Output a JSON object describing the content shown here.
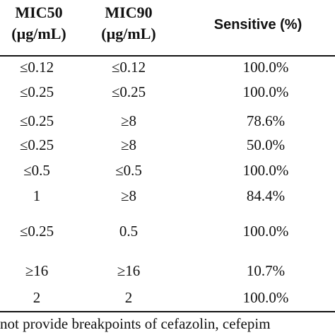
{
  "table": {
    "headers": {
      "mic50": [
        "MIC50",
        "(µg/mL)"
      ],
      "mic90": [
        "MIC90",
        "(µg/mL)"
      ],
      "sensitive": "Sensitive (%)"
    },
    "rows": [
      {
        "mic50": "≤0.12",
        "mic90": "≤0.12",
        "sensitive": "100.0%"
      },
      {
        "mic50": "≤0.25",
        "mic90": "≤0.25",
        "sensitive": "100.0%"
      },
      {
        "mic50": "≤0.25",
        "mic90": "≥8",
        "sensitive": "78.6%"
      },
      {
        "mic50": "≤0.25",
        "mic90": "≥8",
        "sensitive": "50.0%"
      },
      {
        "mic50": "≤0.5",
        "mic90": "≤0.5",
        "sensitive": "100.0%"
      },
      {
        "mic50": "1",
        "mic90": "≥8",
        "sensitive": "84.4%"
      },
      {
        "mic50": "≤0.25",
        "mic90": "0.5",
        "sensitive": "100.0%"
      },
      {
        "mic50": "≥16",
        "mic90": "≥16",
        "sensitive": "10.7%"
      },
      {
        "mic50": "2",
        "mic90": "2",
        "sensitive": "100.0%"
      }
    ]
  },
  "footnote": "not provide breakpoints of cefazolin, cefepim"
}
